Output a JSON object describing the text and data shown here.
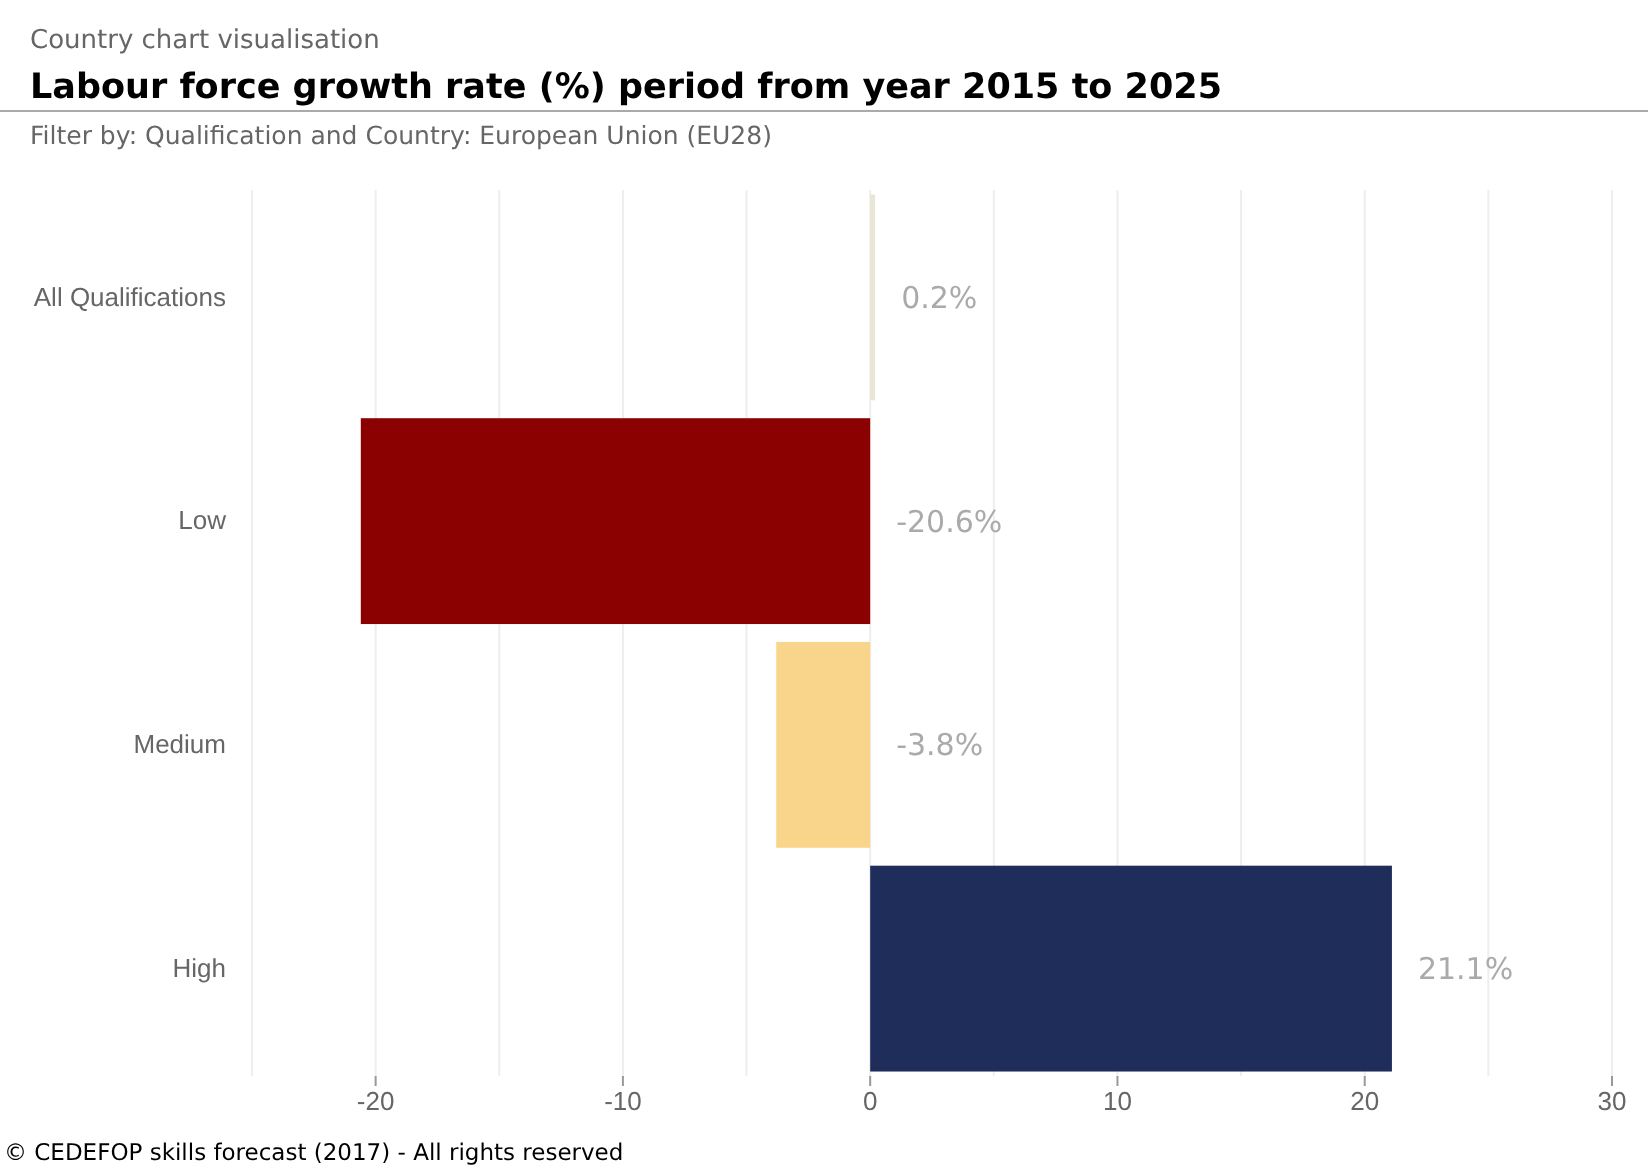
{
  "chart_data": {
    "type": "bar",
    "orientation": "horizontal",
    "title": "Labour force growth rate (%) period from year 2015 to 2025",
    "subtitle": "Country chart visualisation",
    "annotations": [
      "Filter by: Qualification and Country: European Union (EU28)",
      "© CEDEFOP skills forecast (2017) - All rights reserved"
    ],
    "categories": [
      "All Qualifications",
      "Low",
      "Medium",
      "High"
    ],
    "values": [
      0.2,
      -20.6,
      -3.8,
      21.1
    ],
    "colors": [
      "#e8e6d4",
      "#8b0000",
      "#f9d58b",
      "#1f2d5a"
    ],
    "value_labels": [
      "0.2%",
      "-20.6%",
      "-3.8%",
      "21.1%"
    ],
    "xlim": [
      -25,
      30
    ],
    "xticks": [
      {
        "value": -25,
        "label": null
      },
      -20,
      {
        "value": -15,
        "label": null
      },
      -10,
      {
        "value": -5,
        "label": null
      },
      0,
      {
        "value": 5,
        "label": null
      },
      10,
      {
        "value": 15,
        "label": null
      },
      20,
      {
        "value": 25,
        "label": null
      },
      30
    ],
    "grid": "x"
  }
}
